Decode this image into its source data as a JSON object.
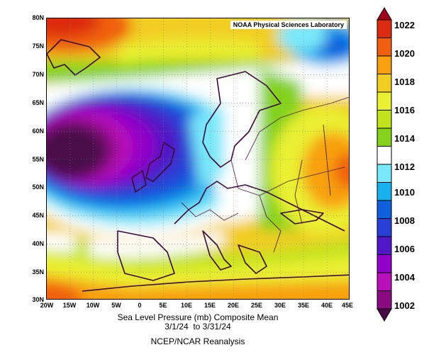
{
  "credit": "NOAA Physical Sciences Laboratory",
  "map": {
    "region": "Europe / North Atlantic",
    "lon_range": [
      -20,
      45
    ],
    "lat_range": [
      30,
      80
    ],
    "grid": "dotted lat/lon graticule"
  },
  "lat_labels": [
    "80N",
    "75N",
    "70N",
    "65N",
    "60N",
    "55N",
    "50N",
    "45N",
    "40N",
    "35N",
    "30N"
  ],
  "lon_labels": [
    "20W",
    "15W",
    "10W",
    "5W",
    "0",
    "5E",
    "10E",
    "15E",
    "20E",
    "25E",
    "30E",
    "35E",
    "40E",
    "45E"
  ],
  "caption": {
    "line1": "Sea Level Pressure (mb) Composite Mean",
    "line2": "3/1/24  to 3/31/24",
    "line3": "NCEP/NCAR Reanalysis"
  },
  "colorbar": {
    "labels": [
      "1022",
      "1020",
      "1018",
      "1016",
      "1014",
      "1012",
      "1010",
      "1008",
      "1006",
      "1004",
      "1002"
    ],
    "colors": [
      "#a0001e",
      "#dc2c10",
      "#f06010",
      "#f8a010",
      "#f2cd22",
      "#eaf032",
      "#c2e21e",
      "#84d21c",
      "#ffffff",
      "#78e8fa",
      "#18b0ee",
      "#1060de",
      "#2840d6",
      "#5018c6",
      "#9000c8",
      "#ba10ba",
      "#8a0a82",
      "#4a0848"
    ]
  }
}
